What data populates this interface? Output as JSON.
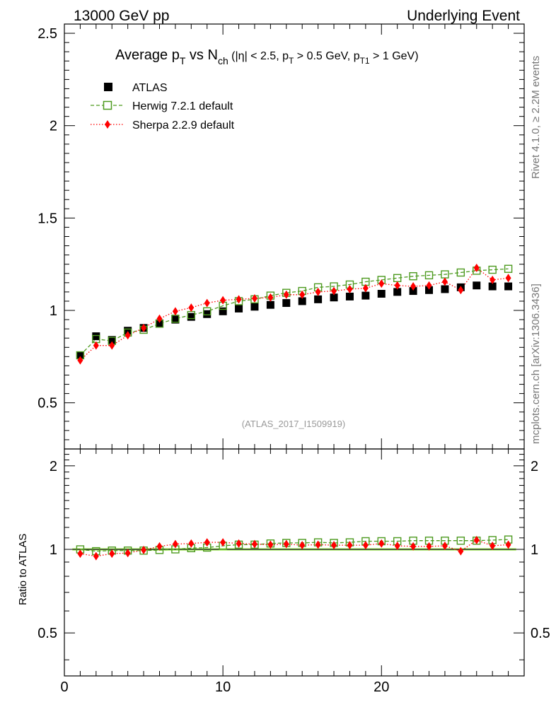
{
  "header": {
    "left_label": "13000 GeV pp",
    "right_label": "Underlying Event"
  },
  "side_labels": {
    "rivet": "Rivet 4.1.0, ≥ 2.2M events",
    "mcplots": "mcplots.cern.ch [arXiv:1306.3436]"
  },
  "analysis_id": "(ATLAS_2017_I1509919)",
  "title": {
    "main": "Average p",
    "main_sub": "T",
    "vs": " vs N",
    "vs_sub": "ch",
    "cuts_a": " (|η| < 2.5, p",
    "cuts_a_sub": "T",
    "cuts_b": " > 0.5 GeV, p",
    "cuts_b_sub": "T1",
    "cuts_c": " > 1 GeV)"
  },
  "legend": {
    "atlas": "ATLAS",
    "herwig": "Herwig 7.2.1 default",
    "sherpa": "Sherpa 2.2.9 default"
  },
  "ratio_ylabel": "Ratio to ATLAS",
  "colors": {
    "atlas": "#000000",
    "herwig": "#4d9a1f",
    "sherpa": "#ff0000",
    "band": "#ccff99"
  },
  "chart_data": {
    "type": "scatter",
    "xlim": [
      0,
      29
    ],
    "main_ylim": [
      0.25,
      2.55
    ],
    "ratio_ylim": [
      0.35,
      2.3
    ],
    "x_ticks": [
      0,
      10,
      20
    ],
    "main_y_ticks": [
      0.5,
      1,
      1.5,
      2,
      2.5
    ],
    "ratio_y_ticks": [
      0.5,
      1,
      2
    ],
    "x": [
      1,
      2,
      3,
      4,
      5,
      6,
      7,
      8,
      9,
      10,
      11,
      12,
      13,
      14,
      15,
      16,
      17,
      18,
      19,
      20,
      21,
      22,
      23,
      24,
      25,
      26,
      27,
      28
    ],
    "series": [
      {
        "name": "ATLAS",
        "values": [
          0.757,
          0.86,
          0.84,
          0.89,
          0.905,
          0.93,
          0.95,
          0.965,
          0.98,
          0.995,
          1.01,
          1.02,
          1.03,
          1.04,
          1.05,
          1.06,
          1.07,
          1.075,
          1.08,
          1.09,
          1.1,
          1.105,
          1.11,
          1.115,
          1.125,
          1.135,
          1.13,
          1.13
        ]
      },
      {
        "name": "Herwig 7.2.1 default",
        "values": [
          0.757,
          0.845,
          0.835,
          0.88,
          0.895,
          0.928,
          0.955,
          0.975,
          0.995,
          1.025,
          1.05,
          1.06,
          1.08,
          1.095,
          1.105,
          1.125,
          1.13,
          1.14,
          1.155,
          1.165,
          1.175,
          1.185,
          1.19,
          1.195,
          1.205,
          1.215,
          1.22,
          1.225
        ]
      },
      {
        "name": "Sherpa 2.2.9 default",
        "values": [
          0.73,
          0.81,
          0.81,
          0.865,
          0.905,
          0.955,
          0.995,
          1.015,
          1.04,
          1.055,
          1.06,
          1.065,
          1.07,
          1.085,
          1.085,
          1.1,
          1.105,
          1.115,
          1.12,
          1.145,
          1.135,
          1.13,
          1.135,
          1.155,
          1.11,
          1.23,
          1.165,
          1.175
        ]
      }
    ],
    "ratio_series": [
      {
        "name": "Herwig / ATLAS",
        "values": [
          1.0,
          0.985,
          0.99,
          0.99,
          0.99,
          0.995,
          1.0,
          1.01,
          1.015,
          1.03,
          1.04,
          1.04,
          1.05,
          1.055,
          1.055,
          1.06,
          1.055,
          1.06,
          1.07,
          1.07,
          1.07,
          1.075,
          1.075,
          1.075,
          1.075,
          1.075,
          1.08,
          1.085
        ]
      },
      {
        "name": "Sherpa / ATLAS",
        "values": [
          0.965,
          0.945,
          0.965,
          0.97,
          0.995,
          1.025,
          1.045,
          1.05,
          1.06,
          1.06,
          1.05,
          1.045,
          1.04,
          1.045,
          1.035,
          1.04,
          1.035,
          1.035,
          1.035,
          1.05,
          1.03,
          1.025,
          1.025,
          1.03,
          0.985,
          1.08,
          1.03,
          1.04
        ]
      }
    ]
  }
}
